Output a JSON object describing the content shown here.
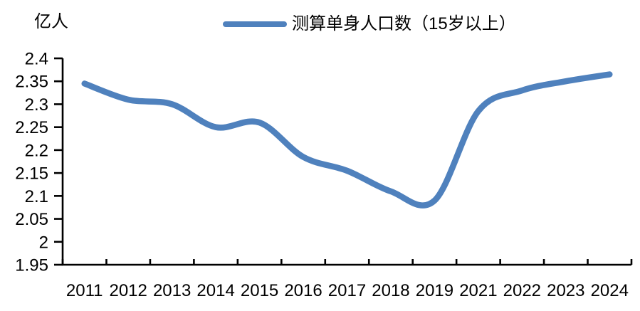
{
  "accent_color": "#4F81BD",
  "axis_color": "#000000",
  "background_color": "#ffffff",
  "chart_data": {
    "type": "line",
    "smooth": true,
    "grid": false,
    "legend_position": "top-center",
    "unit_label": "亿人",
    "categories": [
      "2011",
      "2012",
      "2013",
      "2014",
      "2015",
      "2016",
      "2017",
      "2018",
      "2019",
      "2021",
      "2022",
      "2023",
      "2024"
    ],
    "series": [
      {
        "name": "测算单身人口数（15岁以上）",
        "color": "#4F81BD",
        "values": [
          2.345,
          2.31,
          2.3,
          2.25,
          2.26,
          2.185,
          2.155,
          2.11,
          2.09,
          2.285,
          2.33,
          2.35,
          2.365
        ]
      }
    ],
    "xlabel": "",
    "ylabel": "亿人",
    "ylim": [
      1.95,
      2.4
    ],
    "y_ticks": [
      "2.4",
      "2.35",
      "2.3",
      "2.25",
      "2.2",
      "2.15",
      "2.1",
      "2.05",
      "2",
      "1.95"
    ]
  }
}
